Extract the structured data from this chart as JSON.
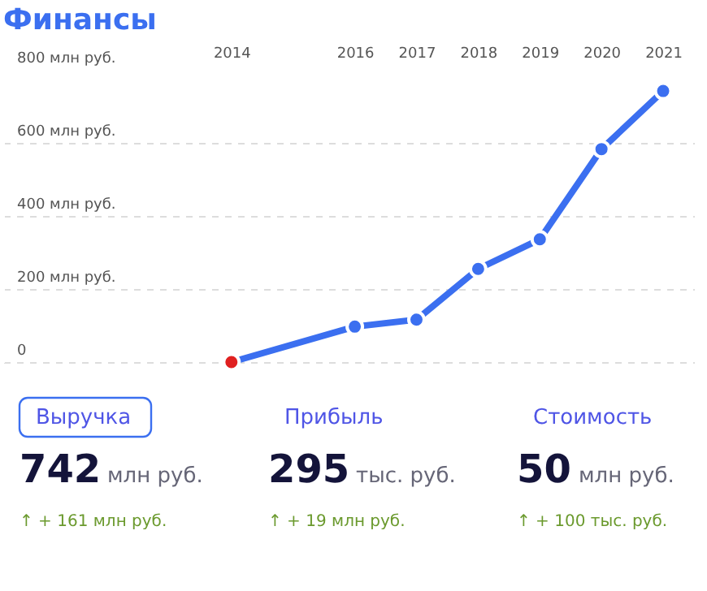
{
  "chart_data": {
    "type": "line",
    "title": "Финансы",
    "x": [
      2014,
      2016,
      2017,
      2018,
      2019,
      2020,
      2021
    ],
    "series": [
      {
        "color": "#3b6ff0",
        "colors": [
          "#e02020",
          "#3b6ff0",
          "#3b6ff0",
          "#3b6ff0",
          "#3b6ff0",
          "#3b6ff0",
          "#3b6ff0"
        ],
        "values": [
          0,
          97,
          116,
          255,
          336,
          583,
          742
        ]
      }
    ],
    "xlim": [
      2010.3,
      2021.5
    ],
    "xticks": [
      2014,
      2016,
      2017,
      2018,
      2019,
      2020,
      2021
    ],
    "ylim": [
      0,
      800
    ],
    "yticks": [
      {
        "value": 0,
        "label": "0"
      },
      {
        "value": 200,
        "label": "200 млн руб."
      },
      {
        "value": 400,
        "label": "400 млн руб."
      },
      {
        "value": 600,
        "label": "600 млн руб."
      },
      {
        "value": 800,
        "label": "800 млн руб."
      }
    ],
    "grid": "y",
    "marker": "circle",
    "line_style": "solid",
    "annotations": [
      "Выручка",
      "742",
      "млн руб.",
      "↑ + 161 млн руб.",
      "Прибыль",
      "295",
      "тыс. руб.",
      "↑ + 19 млн руб.",
      "Стоимость",
      "50",
      "млн руб.",
      "↑ + 100 тыс. руб."
    ]
  }
}
